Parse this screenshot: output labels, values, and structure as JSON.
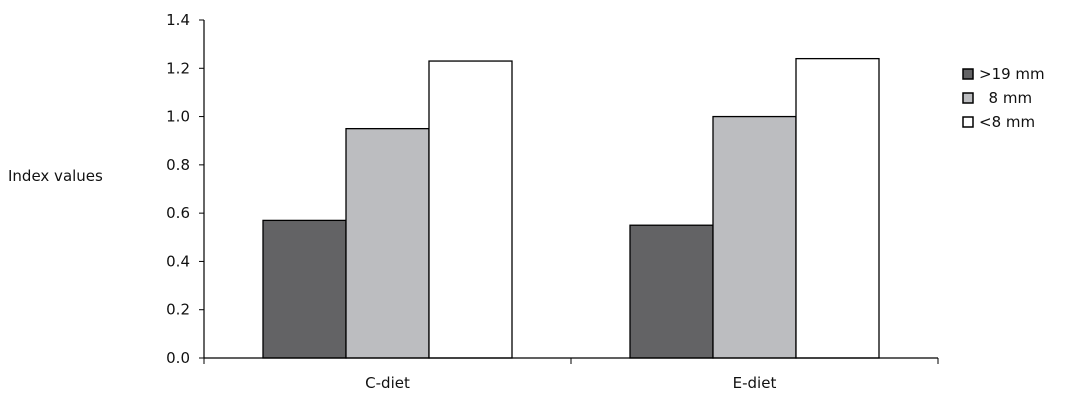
{
  "chart_data": {
    "type": "bar",
    "ylabel": "Index values",
    "xlabel": "",
    "ylim": [
      0,
      1.4
    ],
    "yticks": [
      "0.0",
      "0.2",
      "0.4",
      "0.6",
      "0.8",
      "1.0",
      "1.2",
      "1.4"
    ],
    "categories": [
      "C-diet",
      "E-diet"
    ],
    "grid": false,
    "legend_position": "right",
    "series": [
      {
        "name": ">19 mm",
        "values": [
          0.57,
          0.55
        ],
        "color": "#636365"
      },
      {
        "name": " 8 mm",
        "values": [
          0.95,
          1.0
        ],
        "color": "#bcbdc0"
      },
      {
        "name": "<8 mm",
        "values": [
          1.23,
          1.24
        ],
        "color": "#ffffff"
      }
    ]
  }
}
